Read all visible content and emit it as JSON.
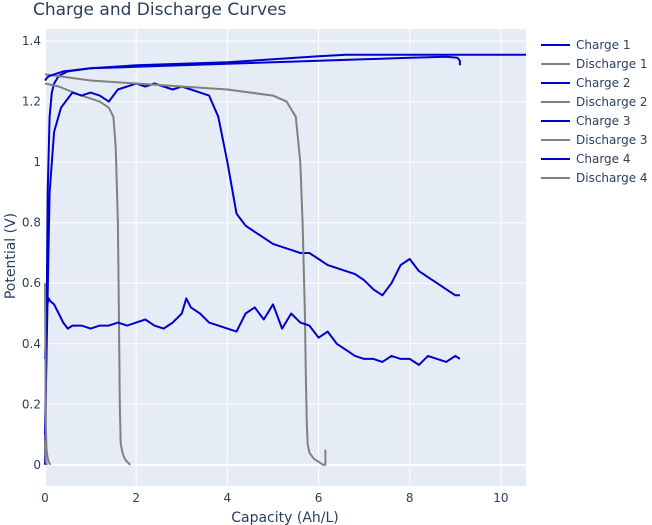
{
  "chart_data": {
    "type": "line",
    "title": "Charge and Discharge Curves",
    "xlabel": "Capacity (Ah/L)",
    "ylabel": "Potential (V)",
    "xlim": [
      0,
      10.55
    ],
    "ylim": [
      -0.07,
      1.44
    ],
    "xticks": [
      0,
      2,
      4,
      6,
      8,
      10
    ],
    "yticks": [
      0,
      0.2,
      0.4,
      0.6,
      0.8,
      1,
      1.2,
      1.4
    ],
    "grid": true,
    "legend_position": "right",
    "series": [
      {
        "name": "Charge 1",
        "color": "#0000cd",
        "x": [
          0.0,
          0.03,
          0.06,
          0.1,
          0.15,
          0.2,
          0.3,
          0.5,
          1.0,
          2.0,
          3.0,
          4.0,
          5.0,
          6.0,
          7.0,
          8.0,
          8.8,
          9.05,
          9.1,
          9.1
        ],
        "y": [
          0.0,
          0.4,
          0.9,
          1.15,
          1.23,
          1.26,
          1.285,
          1.3,
          1.31,
          1.315,
          1.32,
          1.325,
          1.33,
          1.335,
          1.34,
          1.345,
          1.348,
          1.345,
          1.335,
          1.32
        ]
      },
      {
        "name": "Discharge 1",
        "color": "#808080",
        "x": [
          0.0,
          0.3,
          0.8,
          1.2,
          1.4,
          1.5,
          1.55,
          1.6,
          1.62,
          1.64,
          1.66,
          1.7,
          1.75,
          1.8,
          1.87
        ],
        "y": [
          1.26,
          1.25,
          1.22,
          1.2,
          1.18,
          1.15,
          1.05,
          0.8,
          0.5,
          0.2,
          0.07,
          0.04,
          0.02,
          0.01,
          0.0
        ]
      },
      {
        "name": "Charge 2",
        "color": "#0000cd",
        "x": [
          0.0,
          0.05,
          0.1,
          0.2,
          0.35,
          0.5,
          0.6,
          0.8,
          1.0,
          1.2,
          1.4,
          1.6,
          1.8,
          2.0,
          2.2,
          2.4,
          2.6,
          2.8,
          3.0,
          3.2,
          3.4,
          3.6,
          3.8,
          4.0,
          4.2,
          4.4,
          4.6,
          4.8,
          5.0,
          5.2,
          5.4,
          5.6,
          5.8,
          6.0,
          6.2,
          6.4,
          6.6,
          6.8,
          7.0,
          7.2,
          7.4,
          7.6,
          7.8,
          8.0,
          8.2,
          8.4,
          8.6,
          8.8,
          9.0,
          9.1
        ],
        "y": [
          0.1,
          0.5,
          0.9,
          1.1,
          1.18,
          1.21,
          1.23,
          1.22,
          1.23,
          1.22,
          1.2,
          1.24,
          1.25,
          1.26,
          1.25,
          1.26,
          1.25,
          1.24,
          1.25,
          1.24,
          1.23,
          1.22,
          1.15,
          1.0,
          0.83,
          0.79,
          0.77,
          0.75,
          0.73,
          0.72,
          0.71,
          0.7,
          0.7,
          0.68,
          0.66,
          0.65,
          0.64,
          0.63,
          0.61,
          0.58,
          0.56,
          0.6,
          0.66,
          0.68,
          0.64,
          0.62,
          0.6,
          0.58,
          0.56,
          0.56
        ]
      },
      {
        "name": "Discharge 2",
        "color": "#808080",
        "x": [
          0.0,
          0.5,
          1.0,
          2.0,
          3.0,
          4.0,
          5.0,
          5.3,
          5.5,
          5.6,
          5.65,
          5.7,
          5.72,
          5.74,
          5.76,
          5.8,
          5.9,
          6.0,
          6.1,
          6.15,
          6.15
        ],
        "y": [
          1.29,
          1.28,
          1.27,
          1.26,
          1.25,
          1.24,
          1.22,
          1.2,
          1.15,
          1.0,
          0.8,
          0.5,
          0.3,
          0.15,
          0.07,
          0.04,
          0.02,
          0.01,
          0.0,
          0.0,
          0.05
        ]
      },
      {
        "name": "Charge 3",
        "color": "#0000cd",
        "x": [
          0.0,
          0.04,
          0.08,
          0.12,
          0.2,
          0.3,
          0.4,
          0.5,
          0.6,
          0.8,
          1.0,
          1.2,
          1.4,
          1.6,
          1.8,
          2.0,
          2.2,
          2.4,
          2.6,
          2.8,
          3.0,
          3.1,
          3.2,
          3.4,
          3.6,
          3.8,
          4.0,
          4.2,
          4.4,
          4.6,
          4.8,
          5.0,
          5.2,
          5.4,
          5.6,
          5.8,
          6.0,
          6.2,
          6.4,
          6.6,
          6.8,
          7.0,
          7.2,
          7.4,
          7.6,
          7.8,
          8.0,
          8.2,
          8.4,
          8.6,
          8.8,
          9.0,
          9.1
        ],
        "y": [
          0.35,
          0.52,
          0.55,
          0.54,
          0.53,
          0.5,
          0.47,
          0.45,
          0.46,
          0.46,
          0.45,
          0.46,
          0.46,
          0.47,
          0.46,
          0.47,
          0.48,
          0.46,
          0.45,
          0.47,
          0.5,
          0.55,
          0.52,
          0.5,
          0.47,
          0.46,
          0.45,
          0.44,
          0.5,
          0.52,
          0.48,
          0.53,
          0.45,
          0.5,
          0.47,
          0.46,
          0.42,
          0.44,
          0.4,
          0.38,
          0.36,
          0.35,
          0.35,
          0.34,
          0.36,
          0.35,
          0.35,
          0.33,
          0.36,
          0.35,
          0.34,
          0.36,
          0.35
        ]
      },
      {
        "name": "Discharge 3",
        "color": "#808080",
        "x": [
          0.0,
          0.01,
          0.02,
          0.03,
          0.05,
          0.08,
          0.12
        ],
        "y": [
          0.6,
          0.3,
          0.12,
          0.06,
          0.03,
          0.01,
          0.0
        ]
      },
      {
        "name": "Charge 4",
        "color": "#0000cd",
        "x": [
          0.0,
          0.05,
          0.1,
          0.2,
          0.4,
          0.7,
          1.0,
          2.0,
          3.0,
          4.0,
          5.0,
          6.0,
          6.6,
          7.0,
          8.0,
          9.0,
          10.0,
          10.55
        ],
        "y": [
          1.27,
          1.28,
          1.285,
          1.29,
          1.3,
          1.305,
          1.31,
          1.32,
          1.325,
          1.33,
          1.34,
          1.35,
          1.355,
          1.355,
          1.355,
          1.355,
          1.355,
          1.355
        ]
      },
      {
        "name": "Discharge 4",
        "color": "#808080",
        "x": [
          0.0,
          0.01,
          0.02,
          0.03,
          0.05
        ],
        "y": [
          0.08,
          0.03,
          0.01,
          0.005,
          0.0
        ]
      }
    ]
  }
}
